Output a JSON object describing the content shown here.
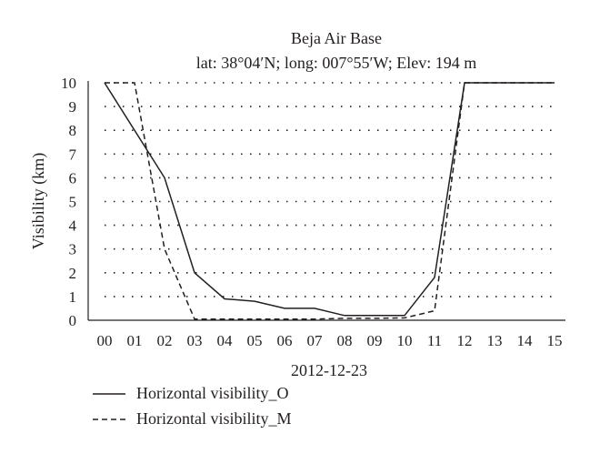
{
  "chart_data": {
    "type": "line",
    "title": "Beja Air Base",
    "subtitle": "lat: 38°04′N; long: 007°55′W; Elev: 194 m",
    "xlabel": "2012-12-23",
    "ylabel": "Visibility (km)",
    "x_ticks": [
      "00",
      "01",
      "02",
      "03",
      "04",
      "05",
      "06",
      "07",
      "08",
      "09",
      "10",
      "11",
      "12",
      "13",
      "14",
      "15"
    ],
    "y_ticks": [
      "0",
      "1",
      "2",
      "3",
      "4",
      "5",
      "6",
      "7",
      "8",
      "9",
      "10"
    ],
    "xlim": [
      0,
      15
    ],
    "ylim": [
      0,
      10
    ],
    "grid": "horizontal dotted",
    "legend_position": "bottom-left",
    "series": [
      {
        "name": "Horizontal visibility_O",
        "style": "solid",
        "color": "#231f20",
        "x": [
          0,
          2,
          3,
          4,
          5,
          6,
          7,
          8,
          9,
          10,
          11,
          12,
          13,
          14,
          15
        ],
        "y": [
          10,
          6,
          2,
          0.9,
          0.8,
          0.5,
          0.5,
          0.2,
          0.2,
          0.2,
          1.8,
          10,
          10,
          10,
          10
        ]
      },
      {
        "name": "Horizontal visibility_M",
        "style": "dashed",
        "color": "#231f20",
        "x": [
          0,
          1,
          2,
          3,
          4,
          5,
          6,
          7,
          8,
          9,
          10,
          11,
          12,
          13,
          14,
          15
        ],
        "y": [
          10,
          10,
          3,
          0.05,
          0.05,
          0.05,
          0.05,
          0.05,
          0.08,
          0.08,
          0.1,
          0.4,
          10,
          10,
          10,
          10
        ]
      }
    ]
  }
}
